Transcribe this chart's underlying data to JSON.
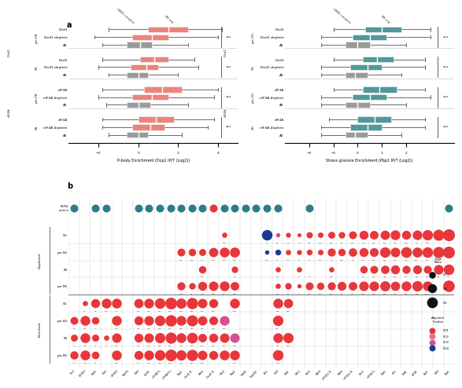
{
  "box_color_red": "#e8736c",
  "box_color_teal": "#3a8a8c",
  "box_color_gray": "#8c8c8c",
  "left_boxes": [
    [
      0.5,
      1.5,
      2.5,
      -1.5,
      4.2
    ],
    [
      -0.3,
      0.7,
      1.5,
      -2.2,
      4.0
    ],
    [
      -0.6,
      0.1,
      0.7,
      -1.8,
      2.5
    ],
    [
      0.1,
      0.8,
      1.5,
      -1.8,
      2.8
    ],
    [
      -0.4,
      0.4,
      1.0,
      -2.0,
      3.0
    ],
    [
      -0.6,
      0.0,
      0.5,
      -1.5,
      2.0
    ],
    [
      0.3,
      1.2,
      2.2,
      -1.8,
      4.0
    ],
    [
      -0.3,
      0.7,
      1.5,
      -2.0,
      3.8
    ],
    [
      -0.6,
      0.0,
      0.6,
      -1.6,
      2.5
    ],
    [
      0.0,
      0.9,
      1.8,
      -1.8,
      3.8
    ],
    [
      -0.3,
      0.6,
      1.3,
      -1.8,
      3.5
    ],
    [
      -0.6,
      0.0,
      0.5,
      -1.5,
      2.2
    ]
  ],
  "right_boxes": [
    [
      0.3,
      1.0,
      1.8,
      -1.0,
      3.0
    ],
    [
      -0.2,
      0.5,
      1.2,
      -1.5,
      3.0
    ],
    [
      -0.5,
      0.0,
      0.5,
      -1.5,
      2.0
    ],
    [
      0.2,
      0.8,
      1.5,
      -1.0,
      2.8
    ],
    [
      -0.3,
      0.4,
      1.0,
      -1.5,
      2.8
    ],
    [
      -0.5,
      -0.1,
      0.4,
      -1.5,
      1.8
    ],
    [
      0.2,
      0.9,
      1.6,
      -1.0,
      2.8
    ],
    [
      -0.2,
      0.5,
      1.2,
      -1.5,
      3.0
    ],
    [
      -0.5,
      0.0,
      0.5,
      -1.5,
      2.0
    ],
    [
      0.0,
      0.7,
      1.4,
      -1.2,
      2.8
    ],
    [
      -0.3,
      0.4,
      1.0,
      -1.5,
      2.8
    ],
    [
      -0.5,
      -0.1,
      0.4,
      -1.5,
      1.8
    ]
  ],
  "left_xlim": [
    -3.5,
    5.0
  ],
  "left_xticks": [
    -2,
    0,
    2,
    4
  ],
  "left_xlabel": "P-body Enrichment (Dcp1 IP/T (Log2))",
  "right_xlim": [
    -3.0,
    4.0
  ],
  "right_xticks": [
    -2,
    -1,
    0,
    1,
    2
  ],
  "right_xlabel": "Stress granule Enrichment (Pbp1 IP/T (Log2))",
  "left_group_labels": [
    "pre-PB",
    "PB",
    "pre-PB",
    "PB"
  ],
  "right_group_labels": [
    "pre-SG",
    "SG",
    "pre-SG",
    "SG"
  ],
  "left_section_labels": [
    "Ded1",
    "eIF4A"
  ],
  "right_section_labels": [
    "Ded1",
    "eIF4A"
  ],
  "row_labels": [
    "Ded1",
    "Ded1 deplete",
    "All",
    "Ded1",
    "Ded1 deplete",
    "All",
    "eIF4A",
    "eIF4A deplete",
    "All",
    "eIF4A",
    "eIF4A deplete",
    "All"
  ],
  "row_labels_right": [
    "Ded1",
    "Ded1 deplete",
    "All",
    "Ded1",
    "Ded1 deplete",
    "All",
    "eIF4A",
    "eIF4A deplete",
    "All",
    "eIF4A",
    "eIF4A deplete",
    "All"
  ],
  "panel_b_cols": [
    "Vts1",
    "eIF4G2",
    "Pub5",
    "Puf1",
    "eIF4G1",
    "Nop56",
    "Puf3",
    "Csl20",
    "eIF4A D-",
    "eIF4A D+",
    "Eap1",
    "Ded1 D-",
    "Nab2",
    "Ded1 D-",
    "Hek2",
    "Gbp2",
    "Puf44",
    "Scp160",
    "Bfr1",
    "Sro9",
    "Hrb1",
    "Mrn1",
    "Cdc6",
    "Nab6",
    "eIF4G1 D-",
    "Nab3",
    "eIF4G2 D-",
    "Cbc2",
    "eIF4E D-",
    "Pub1",
    "Slf1",
    "Nrd1",
    "eIF4E",
    "Ner1",
    "Nol3",
    "Pab1"
  ],
  "panel_b_rows": [
    "pre-PB",
    "PB",
    "pre-SG",
    "SG",
    "pre-PB",
    "PB",
    "pre-SG",
    "SG"
  ],
  "dot_red": "#e8363a",
  "dot_pink": "#d45090",
  "dot_blue": "#1a3a8c",
  "dot_teal": "#2d7d87",
  "dot_darkgray": "#333333",
  "teal_protein_cols": [
    0,
    2,
    3,
    6,
    7,
    8,
    9,
    10,
    11,
    12,
    14,
    15,
    16,
    17,
    18,
    19,
    22,
    35
  ],
  "red_protein_cols": [
    9,
    13
  ],
  "max_dot_size": 130
}
